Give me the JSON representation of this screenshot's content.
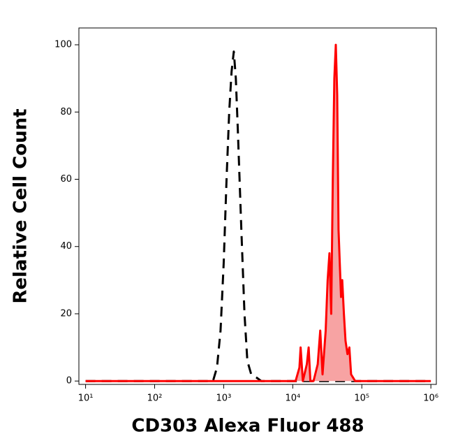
{
  "chart_data": {
    "type": "line",
    "xlabel": "CD303 Alexa Fluor 488",
    "ylabel": "Relative Cell Count",
    "xscale": "log",
    "xlim": [
      8,
      1200000
    ],
    "xticks": [
      {
        "value": 10,
        "label": "10¹"
      },
      {
        "value": 100,
        "label": "10²"
      },
      {
        "value": 1000,
        "label": "10³"
      },
      {
        "value": 10000,
        "label": "10⁴"
      },
      {
        "value": 100000,
        "label": "10⁵"
      },
      {
        "value": 1000000,
        "label": "10⁶"
      }
    ],
    "ylim": [
      -1,
      105
    ],
    "yticks": [
      0,
      20,
      40,
      60,
      80,
      100
    ],
    "series": [
      {
        "color": "#000000",
        "dashed": true,
        "x": [
          10,
          700,
          800,
          900,
          1000,
          1100,
          1200,
          1300,
          1400,
          1500,
          1600,
          1800,
          2000,
          2200,
          2500,
          3000,
          3500,
          1000000
        ],
        "values": [
          0,
          0,
          4,
          15,
          35,
          60,
          80,
          92,
          98,
          90,
          75,
          45,
          20,
          6,
          2,
          1,
          0,
          0
        ]
      },
      {
        "color": "#ff0000",
        "fill": "#f7a3a3",
        "x": [
          10,
          11000,
          12500,
          13000,
          14000,
          16000,
          17000,
          18000,
          20000,
          23000,
          25000,
          27000,
          30000,
          32000,
          34000,
          36000,
          38000,
          40000,
          42000,
          44000,
          46000,
          48000,
          50000,
          52000,
          55000,
          58000,
          62000,
          66000,
          70000,
          80000,
          1000000
        ],
        "values": [
          0,
          0,
          4,
          10,
          0,
          5,
          10,
          0,
          0,
          5,
          15,
          2,
          15,
          30,
          38,
          20,
          60,
          90,
          100,
          85,
          45,
          35,
          25,
          30,
          20,
          12,
          8,
          10,
          2,
          0,
          0
        ]
      }
    ]
  }
}
